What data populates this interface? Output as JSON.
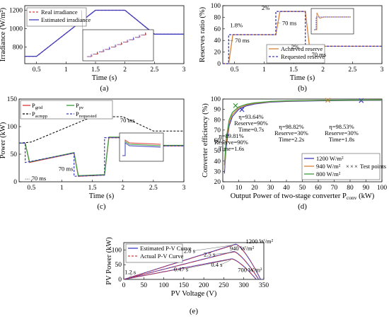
{
  "chart_data": [
    {
      "id": "a",
      "type": "line",
      "caption": "(a)",
      "xlabel": "Time (s)",
      "ylabel": "Irradiance (W/m²)",
      "xlim": [
        0.3,
        3.0
      ],
      "ylim": [
        620,
        1250
      ],
      "xticks": [
        "0.5",
        "1",
        "1.5",
        "2",
        "2.5",
        "3"
      ],
      "yticks": [
        "800",
        "1000",
        "1200"
      ],
      "legend_position": "top-left",
      "series": [
        {
          "name": "Real irradiance",
          "color": "#d93a3a",
          "dash": true,
          "x": [
            0.3,
            0.5,
            1.5,
            2.0,
            2.5,
            3.0
          ],
          "y": [
            700,
            700,
            1200,
            1200,
            940,
            940
          ]
        },
        {
          "name": "Estimated irradiance",
          "color": "#3b3bbf",
          "dash": false,
          "x": [
            0.3,
            0.5,
            1.5,
            2.0,
            2.5,
            3.0
          ],
          "y": [
            700,
            700,
            1200,
            1200,
            940,
            940
          ]
        }
      ]
    },
    {
      "id": "b",
      "type": "line",
      "caption": "(b)",
      "xlabel": "Time (s)",
      "ylabel": "Reserves ratio (%)",
      "xlim": [
        0.3,
        3.0
      ],
      "ylim": [
        0,
        100
      ],
      "xticks": [
        "0.5",
        "1",
        "1.5",
        "2",
        "2.5",
        "3"
      ],
      "yticks": [
        "0",
        "20",
        "40",
        "60",
        "80",
        "100"
      ],
      "legend_position": "bottom-center",
      "annotations": [
        "1.8%",
        "70 ms",
        "2%",
        "70 ms",
        "2%",
        "70 ms"
      ],
      "series": [
        {
          "name": "Achieved reserve",
          "color": "#d9823a",
          "dash": false,
          "x": [
            0.3,
            0.4,
            0.47,
            1.2,
            1.27,
            1.7,
            1.77,
            3.0
          ],
          "y": [
            0,
            0,
            50,
            50,
            90,
            90,
            30,
            30
          ]
        },
        {
          "name": "Requested reserve",
          "color": "#3b3bbf",
          "dash": true,
          "x": [
            0.3,
            0.4,
            0.4,
            1.2,
            1.2,
            1.7,
            1.7,
            3.0
          ],
          "y": [
            0,
            0,
            50,
            50,
            90,
            90,
            30,
            30
          ]
        }
      ]
    },
    {
      "id": "c",
      "type": "line",
      "caption": "(c)",
      "xlabel": "Time (s)",
      "ylabel": "Power (kW)",
      "xlim": [
        0.3,
        3.0
      ],
      "ylim": [
        0,
        150
      ],
      "xticks": [
        "0.5",
        "1",
        "1.5",
        "2",
        "2.5",
        "3"
      ],
      "yticks": [
        "0",
        "50",
        "100",
        "150"
      ],
      "legend_position": "top-left",
      "annotations": [
        "70 ms",
        "70 ms",
        "70 ms"
      ],
      "series": [
        {
          "name": "grid",
          "label_main": "P",
          "label_sub": "grid",
          "color": "#d93a3a",
          "dash": false,
          "x": [
            0.3,
            0.4,
            0.47,
            1.2,
            1.27,
            1.7,
            1.77,
            2.0,
            2.5,
            3.0
          ],
          "y": [
            70,
            70,
            35,
            52,
            10,
            12,
            80,
            80,
            65,
            65
          ]
        },
        {
          "name": "pv",
          "label_main": "P",
          "label_sub": "pv",
          "color": "#3a9a3a",
          "dash": false,
          "x": [
            0.3,
            0.4,
            0.47,
            1.2,
            1.27,
            1.7,
            1.77,
            2.0,
            2.5,
            3.0
          ],
          "y": [
            70,
            70,
            36,
            53,
            11,
            13,
            81,
            81,
            66,
            66
          ]
        },
        {
          "name": "acmpp",
          "label_main": "P",
          "label_sub": "acmpp",
          "color": "#000000",
          "dash": true,
          "x": [
            0.3,
            0.5,
            1.5,
            2.0,
            2.5,
            3.0
          ],
          "y": [
            70,
            72,
            118,
            118,
            92,
            92
          ]
        },
        {
          "name": "requested",
          "label_main": "P",
          "label_sub": "requested",
          "color": "#3b3bbf",
          "dash": true,
          "x": [
            0.3,
            0.4,
            0.4,
            1.2,
            1.2,
            1.7,
            1.7,
            2.0,
            2.5,
            3.0
          ],
          "y": [
            70,
            70,
            35,
            52,
            10,
            12,
            80,
            80,
            65,
            65
          ]
        }
      ]
    },
    {
      "id": "d",
      "type": "line",
      "caption": "(d)",
      "xlabel": "Output Power of two-stage converter P",
      "xlabel_sub": "conv",
      "xlabel_unit": " (kW)",
      "ylabel": "Converter efficiency (%)",
      "xlim": [
        0,
        100
      ],
      "ylim": [
        20,
        100
      ],
      "xticks": [
        "0",
        "10",
        "20",
        "30",
        "40",
        "50",
        "60",
        "70",
        "80",
        "90",
        "100"
      ],
      "yticks": [
        "20",
        "30",
        "40",
        "50",
        "60",
        "70",
        "80",
        "90",
        "100"
      ],
      "legend_position": "bottom-right",
      "test_points_label": "Test points",
      "annotations": [
        {
          "eta": "η=93.64%",
          "reserve": "Reserve=90%",
          "time": "Time=0.7s"
        },
        {
          "eta": "η=89.81%",
          "reserve": "Reserve=90%",
          "time": "Time=1.6s"
        },
        {
          "eta": "η=98.82%",
          "reserve": "Reserve=30%",
          "time": "Time=2.2s"
        },
        {
          "eta": "η=98.53%",
          "reserve": "Reserve=30%",
          "time": "Time=1.8s"
        }
      ],
      "series": [
        {
          "name": "1200 W/m²",
          "color": "#3b3bbf",
          "x": [
            1,
            2,
            4,
            6,
            10,
            15,
            20,
            30,
            40,
            60,
            80,
            100
          ],
          "y": [
            28,
            52,
            74,
            83,
            90,
            93.5,
            95.2,
            97,
            97.7,
            98.3,
            98.6,
            98.8
          ],
          "test_point": [
            87,
            98.53
          ]
        },
        {
          "name": "940 W/m²",
          "color": "#d9823a",
          "x": [
            1,
            2,
            4,
            6,
            10,
            15,
            20,
            30,
            40,
            60,
            80,
            100
          ],
          "y": [
            32,
            56,
            77,
            85,
            91.3,
            94.3,
            95.8,
            97.4,
            98,
            98.6,
            98.9,
            99
          ],
          "test_point": [
            66,
            98.82
          ]
        },
        {
          "name": "800 W/m²",
          "color": "#3a9a3a",
          "x": [
            1,
            2,
            4,
            6,
            10,
            15,
            20,
            30,
            40,
            60,
            80,
            100
          ],
          "y": [
            36,
            60,
            80,
            87,
            92.5,
            95,
            96.3,
            97.7,
            98.3,
            98.8,
            99,
            99.1
          ],
          "test_point": [
            8,
            93.64
          ]
        },
        {
          "name": "",
          "color": "#3b3bbf",
          "x": [],
          "y": [],
          "test_point": [
            12,
            89.81
          ]
        }
      ]
    },
    {
      "id": "e",
      "type": "line",
      "caption": "(e)",
      "xlabel": "PV Voltage (V)",
      "ylabel": "PV Power (kW)",
      "xlim": [
        0,
        350
      ],
      "ylim": [
        0,
        125
      ],
      "xticks": [
        "0",
        "50",
        "100",
        "150",
        "200",
        "250",
        "300",
        "350"
      ],
      "yticks": [
        "0",
        "50",
        "100"
      ],
      "legend_position": "top-left",
      "curve_labels": [
        "1200 W/m²",
        "940 W/m²",
        "700 W/m²"
      ],
      "time_labels": [
        "2.0 s",
        "2.5 s",
        "0.4 s",
        "0.47 s",
        "1.2 s"
      ],
      "series": [
        {
          "name": "Estimated P-V Curve",
          "color": "#3b3bbf",
          "dash": false
        },
        {
          "name": "Actual P-V Curve",
          "color": "#d93a3a",
          "dash": true
        }
      ],
      "pv_curves": [
        {
          "irr": "1200",
          "voc": 342,
          "pmax": 120,
          "vmp": 280
        },
        {
          "irr": "940",
          "voc": 337,
          "pmax": 95,
          "vmp": 275
        },
        {
          "irr": "700",
          "voc": 331,
          "pmax": 70,
          "vmp": 270
        }
      ]
    }
  ]
}
